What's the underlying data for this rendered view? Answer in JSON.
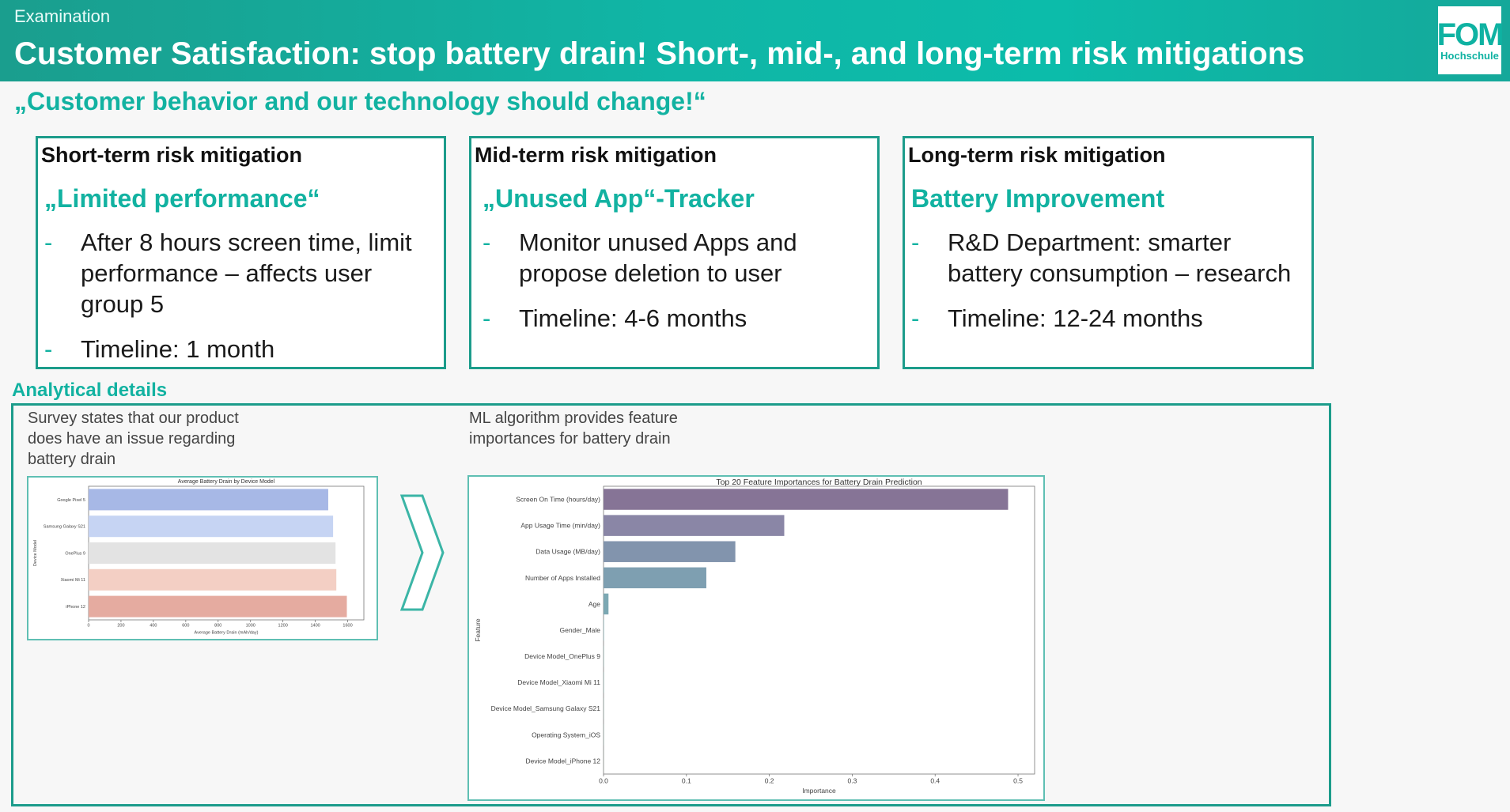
{
  "header": {
    "kicker": "Examination",
    "title": "Customer Satisfaction: stop battery drain! Short-, mid-, and long-term risk mitigations",
    "logo_text": "FOM",
    "logo_sub": "Hochschule"
  },
  "quote": "„Customer behavior and our technology should change!“",
  "columns": [
    {
      "heading": "Short-term risk mitigation",
      "subtitle": "„Limited performance“",
      "bullets": [
        "After 8 hours screen time, limit performance – affects user group 5",
        "Timeline: 1 month"
      ]
    },
    {
      "heading": "Mid-term risk mitigation",
      "subtitle": "„Unused App“-Tracker",
      "bullets": [
        "Monitor unused Apps and propose deletion to user",
        "Timeline: 4-6 months"
      ]
    },
    {
      "heading": "Long-term risk mitigation",
      "subtitle": "Battery Improvement",
      "bullets": [
        "R&D Department: smarter battery consumption – research",
        "Timeline: 12-24 months"
      ]
    }
  ],
  "analytical": {
    "label": "Analytical details",
    "note_left": "Survey states that our product does have an issue regarding battery drain",
    "note_right": "ML algorithm provides feature importances for battery drain"
  },
  "colors": {
    "accent": "#12b2a1",
    "border": "#1c9c8b"
  },
  "chart_data": [
    {
      "type": "bar",
      "orientation": "horizontal",
      "title": "Average Battery Drain by Device Model",
      "xlabel": "Average Battery Drain (mAh/day)",
      "ylabel": "Device Model",
      "categories": [
        "Google Pixel 5",
        "Samsung Galaxy S21",
        "OnePlus 9",
        "Xiaomi Mi 11",
        "iPhone 12"
      ],
      "values": [
        1480,
        1510,
        1525,
        1530,
        1595
      ],
      "colors": [
        "#a7b8e6",
        "#c6d4f3",
        "#e3e3e3",
        "#f3cfc4",
        "#e5aba0"
      ],
      "xlim": [
        0,
        1700
      ],
      "xticks": [
        0,
        200,
        400,
        600,
        800,
        1000,
        1200,
        1400,
        1600
      ],
      "grid": false
    },
    {
      "type": "bar",
      "orientation": "horizontal",
      "title": "Top 20 Feature Importances for Battery Drain Prediction",
      "xlabel": "Importance",
      "ylabel": "Feature",
      "categories": [
        "Screen On Time (hours/day)",
        "App Usage Time (min/day)",
        "Data Usage (MB/day)",
        "Number of Apps Installed",
        "Age",
        "Gender_Male",
        "Device Model_OnePlus 9",
        "Device Model_Xiaomi Mi 11",
        "Device Model_Samsung Galaxy S21",
        "Operating System_iOS",
        "Device Model_iPhone 12"
      ],
      "values": [
        0.488,
        0.218,
        0.159,
        0.124,
        0.006,
        0.0005,
        0.0003,
        0.0003,
        0.0002,
        0.0002,
        0.0001
      ],
      "colors": [
        "#867496",
        "#8a86a6",
        "#8294ad",
        "#7e9fb1",
        "#7ca8b3",
        "#7ab0b3",
        "#7ab5b2",
        "#79b9b0",
        "#7abdac",
        "#7fc1a8",
        "#86c4a3"
      ],
      "xlim": [
        0,
        0.52
      ],
      "xticks": [
        0.0,
        0.1,
        0.2,
        0.3,
        0.4,
        0.5
      ],
      "grid": false
    }
  ]
}
